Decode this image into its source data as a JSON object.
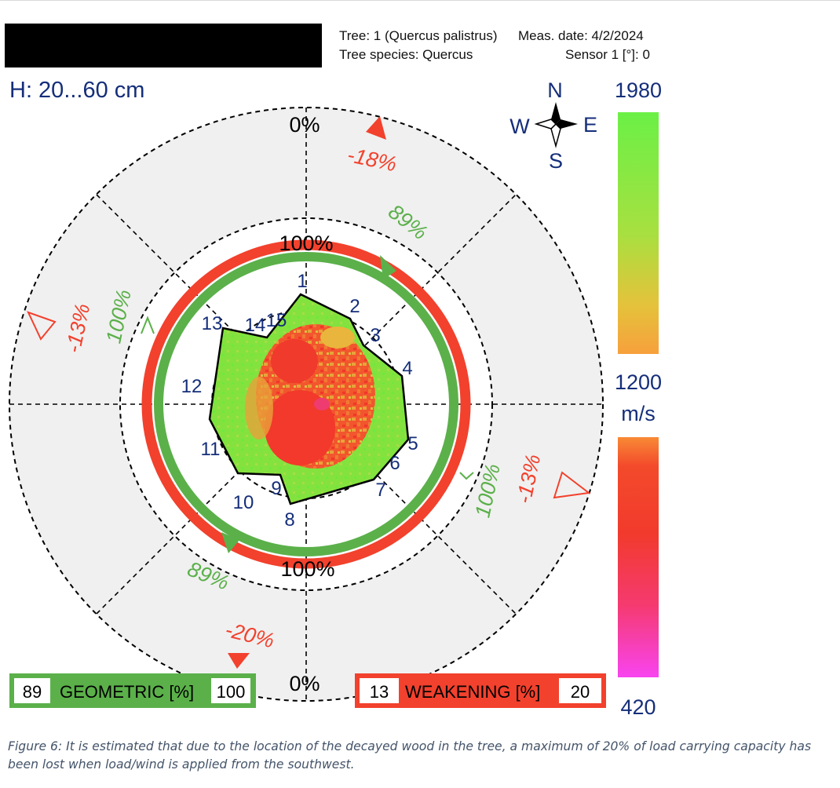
{
  "header": {
    "tree_line": "Tree: 1 (Quercus palistrus)",
    "date_line": "Meas. date: 4/2/2024",
    "species_line": "Tree species: Quercus",
    "sensor_line": "Sensor 1 [°]: 0"
  },
  "height_label": "H: 20...60 cm",
  "compass": {
    "n": "N",
    "s": "S",
    "e": "E",
    "w": "W"
  },
  "rings": {
    "outer_top": "0%",
    "outer_bottom": "0%",
    "inner_top": "100%",
    "inner_bottom": "100%"
  },
  "sensors": [
    "1",
    "2",
    "3",
    "4",
    "5",
    "6",
    "7",
    "8",
    "9",
    "10",
    "11",
    "12",
    "13",
    "14",
    "15"
  ],
  "directional_values": {
    "weakening_n": "-18%",
    "weakening_w": "-13%",
    "weakening_e": "-13%",
    "weakening_sw": "-20%",
    "geometric_ne": "89%",
    "geometric_w": "100%",
    "geometric_e": "100%",
    "geometric_sw": "89%"
  },
  "scale": {
    "top": "1980",
    "mid": "1200",
    "unit": "m/s",
    "bottom": "420",
    "colors": {
      "green": "#7ddc3c",
      "orange": "#f7a03c",
      "red": "#f23a2c",
      "magenta": "#f844f0"
    }
  },
  "legend": {
    "geometric": {
      "min": "89",
      "label": "GEOMETRIC [%]",
      "max": "100",
      "color": "#5bb04a"
    },
    "weakening": {
      "min": "13",
      "label": "WEAKENING [%]",
      "max": "20",
      "color": "#f2412d"
    }
  },
  "caption": "Figure 6: It is estimated that due to the location of the decayed wood in the tree, a maximum of 20% of load carrying capacity has been lost when load/wind is applied from the southwest."
}
